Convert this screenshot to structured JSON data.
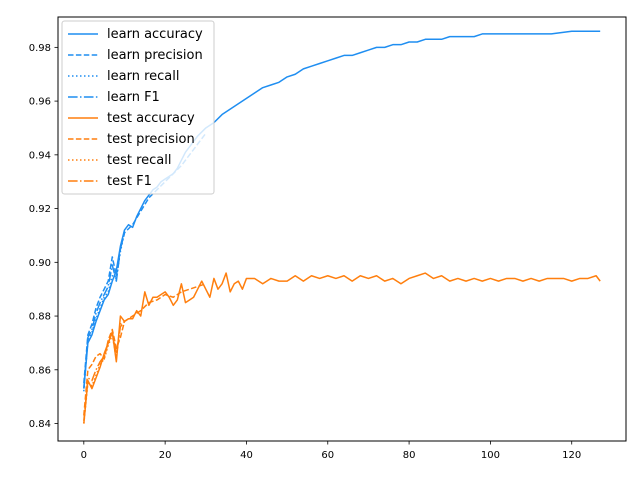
{
  "chart_data": {
    "type": "line",
    "title": "",
    "xlabel": "",
    "ylabel": "",
    "xlim": [
      -6.35,
      133.35
    ],
    "ylim": [
      0.8335,
      0.9913
    ],
    "xticks": [
      0,
      20,
      40,
      60,
      80,
      100,
      120
    ],
    "yticks": [
      0.84,
      0.86,
      0.88,
      0.9,
      0.92,
      0.94,
      0.96,
      0.98
    ],
    "ytick_labels": [
      "0.84",
      "0.86",
      "0.88",
      "0.90",
      "0.92",
      "0.94",
      "0.96",
      "0.98"
    ],
    "grid": false,
    "legend_position": "top-left",
    "colors": {
      "learn": "#1f8ef1",
      "test": "#ff7f0e"
    },
    "series": [
      {
        "name": "learn accuracy",
        "group": "learn",
        "style": "solid",
        "x": [
          0,
          1,
          2,
          3,
          4,
          5,
          6,
          7,
          8,
          9,
          10,
          11,
          12,
          13,
          14,
          15,
          16,
          17,
          18,
          19,
          20,
          21,
          22,
          23,
          24,
          25,
          26,
          27,
          28,
          30,
          32,
          34,
          36,
          38,
          40,
          42,
          44,
          46,
          48,
          50,
          52,
          54,
          56,
          58,
          60,
          62,
          64,
          66,
          68,
          70,
          72,
          74,
          76,
          78,
          80,
          82,
          84,
          86,
          88,
          90,
          92,
          94,
          96,
          98,
          100,
          105,
          110,
          115,
          120,
          125,
          127
        ],
        "y": [
          0.853,
          0.87,
          0.873,
          0.878,
          0.882,
          0.886,
          0.888,
          0.893,
          0.897,
          0.906,
          0.912,
          0.914,
          0.913,
          0.917,
          0.92,
          0.923,
          0.925,
          0.927,
          0.928,
          0.93,
          0.931,
          0.932,
          0.933,
          0.935,
          0.938,
          0.941,
          0.943,
          0.945,
          0.947,
          0.95,
          0.952,
          0.955,
          0.957,
          0.959,
          0.961,
          0.963,
          0.965,
          0.966,
          0.967,
          0.969,
          0.97,
          0.972,
          0.973,
          0.974,
          0.975,
          0.976,
          0.977,
          0.977,
          0.978,
          0.979,
          0.98,
          0.98,
          0.981,
          0.981,
          0.982,
          0.982,
          0.983,
          0.983,
          0.983,
          0.984,
          0.984,
          0.984,
          0.984,
          0.985,
          0.985,
          0.985,
          0.985,
          0.985,
          0.986,
          0.986,
          0.986
        ]
      },
      {
        "name": "learn precision",
        "group": "learn",
        "style": "dashed",
        "x": [
          0,
          1,
          2,
          3,
          4,
          5,
          6,
          7,
          8,
          9,
          10,
          12,
          14,
          16,
          18,
          20,
          22,
          24,
          26,
          28,
          30
        ],
        "y": [
          0.855,
          0.873,
          0.877,
          0.883,
          0.887,
          0.89,
          0.893,
          0.902,
          0.895,
          0.905,
          0.911,
          0.914,
          0.919,
          0.924,
          0.927,
          0.93,
          0.933,
          0.936,
          0.94,
          0.944,
          0.948
        ]
      },
      {
        "name": "learn recall",
        "group": "learn",
        "style": "dotted",
        "x": [
          0,
          1,
          2,
          3,
          4,
          5,
          6,
          7,
          8,
          9,
          10
        ],
        "y": [
          0.852,
          0.871,
          0.874,
          0.879,
          0.883,
          0.887,
          0.889,
          0.895,
          0.894,
          0.904,
          0.911
        ]
      },
      {
        "name": "learn F1",
        "group": "learn",
        "style": "dashdot",
        "x": [
          0,
          1,
          2,
          3,
          4,
          5,
          6,
          7,
          8,
          9,
          10
        ],
        "y": [
          0.853,
          0.872,
          0.875,
          0.881,
          0.885,
          0.888,
          0.891,
          0.899,
          0.893,
          0.905,
          0.911
        ]
      },
      {
        "name": "test accuracy",
        "group": "test",
        "style": "solid",
        "x": [
          0,
          1,
          2,
          3,
          4,
          5,
          6,
          7,
          8,
          9,
          10,
          11,
          12,
          13,
          14,
          15,
          16,
          17,
          18,
          19,
          20,
          21,
          22,
          23,
          24,
          25,
          26,
          27,
          28,
          29,
          30,
          31,
          32,
          33,
          34,
          35,
          36,
          37,
          38,
          39,
          40,
          42,
          44,
          46,
          48,
          50,
          52,
          54,
          56,
          58,
          60,
          62,
          64,
          66,
          68,
          70,
          72,
          74,
          76,
          78,
          80,
          82,
          84,
          86,
          88,
          90,
          92,
          94,
          96,
          98,
          100,
          102,
          104,
          106,
          108,
          110,
          112,
          114,
          116,
          118,
          120,
          122,
          124,
          126,
          127
        ],
        "y": [
          0.84,
          0.856,
          0.853,
          0.857,
          0.861,
          0.866,
          0.87,
          0.874,
          0.863,
          0.88,
          0.878,
          0.879,
          0.879,
          0.882,
          0.88,
          0.889,
          0.884,
          0.887,
          0.887,
          0.888,
          0.889,
          0.887,
          0.884,
          0.886,
          0.892,
          0.885,
          0.886,
          0.887,
          0.89,
          0.893,
          0.89,
          0.887,
          0.894,
          0.89,
          0.892,
          0.896,
          0.889,
          0.892,
          0.893,
          0.89,
          0.894,
          0.894,
          0.892,
          0.894,
          0.893,
          0.893,
          0.895,
          0.893,
          0.895,
          0.894,
          0.895,
          0.894,
          0.895,
          0.893,
          0.895,
          0.894,
          0.895,
          0.893,
          0.894,
          0.892,
          0.894,
          0.895,
          0.896,
          0.894,
          0.895,
          0.893,
          0.894,
          0.893,
          0.894,
          0.893,
          0.894,
          0.893,
          0.894,
          0.894,
          0.893,
          0.894,
          0.893,
          0.894,
          0.894,
          0.894,
          0.893,
          0.894,
          0.894,
          0.895,
          0.893
        ]
      },
      {
        "name": "test precision",
        "group": "test",
        "style": "dashed",
        "x": [
          0,
          1,
          2,
          3,
          4,
          5,
          6,
          7,
          8,
          9,
          10,
          12,
          14,
          16,
          18,
          20,
          22,
          24,
          26,
          28,
          30
        ],
        "y": [
          0.843,
          0.86,
          0.862,
          0.865,
          0.866,
          0.864,
          0.871,
          0.875,
          0.868,
          0.872,
          0.878,
          0.88,
          0.882,
          0.885,
          0.886,
          0.888,
          0.887,
          0.889,
          0.89,
          0.891,
          0.892
        ]
      },
      {
        "name": "test recall",
        "group": "test",
        "style": "dotted",
        "x": [
          0,
          1,
          2,
          3,
          4,
          5,
          6,
          7,
          8,
          9,
          10
        ],
        "y": [
          0.84,
          0.855,
          0.854,
          0.858,
          0.862,
          0.864,
          0.869,
          0.873,
          0.864,
          0.877,
          0.878
        ]
      },
      {
        "name": "test F1",
        "group": "test",
        "style": "dashdot",
        "x": [
          0,
          1,
          2,
          3,
          4,
          5,
          6,
          7,
          8,
          9,
          10
        ],
        "y": [
          0.841,
          0.857,
          0.856,
          0.86,
          0.863,
          0.865,
          0.87,
          0.874,
          0.866,
          0.876,
          0.878
        ]
      }
    ]
  }
}
